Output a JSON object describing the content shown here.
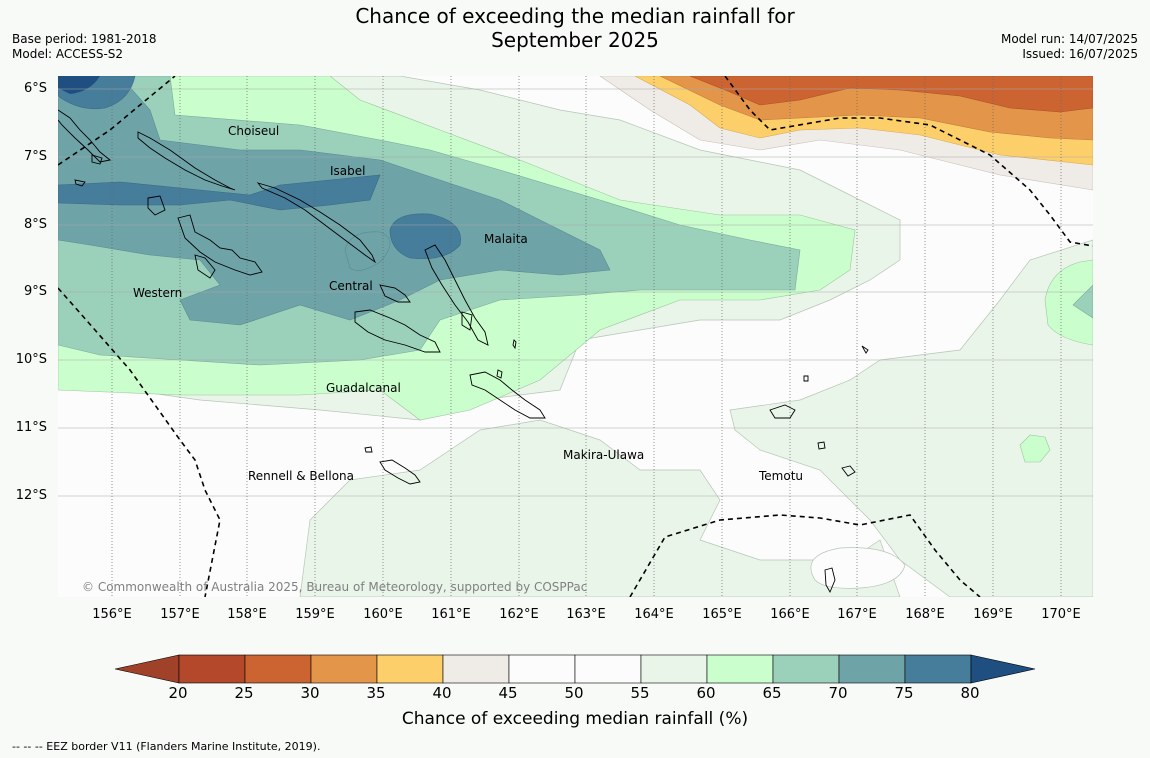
{
  "title_line1": "Chance of exceeding the median rainfall for",
  "title_line2": "September 2025",
  "base_period": "Base period: 1981-2018",
  "model": "Model: ACCESS-S2",
  "model_run": "Model run: 14/07/2025",
  "issued": "Issued: 16/07/2025",
  "lat_labels": [
    "6°S",
    "7°S",
    "8°S",
    "9°S",
    "10°S",
    "11°S",
    "12°S"
  ],
  "lon_labels": [
    "156°E",
    "157°E",
    "158°E",
    "159°E",
    "160°E",
    "161°E",
    "162°E",
    "163°E",
    "164°E",
    "165°E",
    "166°E",
    "167°E",
    "168°E",
    "169°E",
    "170°E"
  ],
  "regions": {
    "choiseul": "Choiseul",
    "isabel": "Isabel",
    "malaita": "Malaita",
    "western": "Western",
    "central": "Central",
    "guadalcanal": "Guadalcanal",
    "makira": "Makira-Ulawa",
    "rennell": "Rennell & Bellona",
    "temotu": "Temotu"
  },
  "copyright": "© Commonwealth of Australia 2025, Bureau of Meteorology, supported by COSPPac",
  "colorbar": {
    "ticks": [
      "20",
      "25",
      "30",
      "35",
      "40",
      "45",
      "50",
      "55",
      "60",
      "65",
      "70",
      "75",
      "80"
    ],
    "colors": [
      "#b3482b",
      "#cc6432",
      "#e3954a",
      "#fdcf6a",
      "#efebe6",
      "#fbfcfb",
      "#fbfcfb",
      "#eaf5ea",
      "#cafecc",
      "#9bd0bb",
      "#6ea3a7",
      "#467d9a"
    ],
    "under_color": "#a0412a",
    "over_color": "#1f4e80",
    "label": "Chance of exceeding median rainfall (%)"
  },
  "footnote": "--  --  -- EEZ border V11 (Flanders Marine Institute, 2019)."
}
